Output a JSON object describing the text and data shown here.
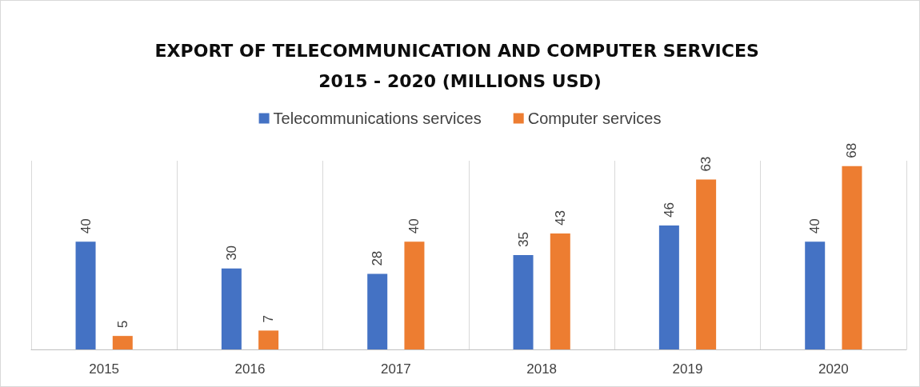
{
  "chart_data": {
    "type": "bar",
    "title": "EXPORT OF TELECOMMUNICATION AND COMPUTER SERVICES 2015 - 2020 (MILLIONS USD)",
    "categories": [
      "2015",
      "2016",
      "2017",
      "2018",
      "2019",
      "2020"
    ],
    "series": [
      {
        "name": "Telecommunications services",
        "color": "#4472c4",
        "values": [
          40,
          30,
          28,
          35,
          46,
          40
        ]
      },
      {
        "name": "Computer services",
        "color": "#ed7d31",
        "values": [
          5,
          7,
          40,
          43,
          63,
          68
        ]
      }
    ],
    "data_labels": true,
    "grid": "x",
    "legend": "top",
    "tick_labels": "x"
  }
}
